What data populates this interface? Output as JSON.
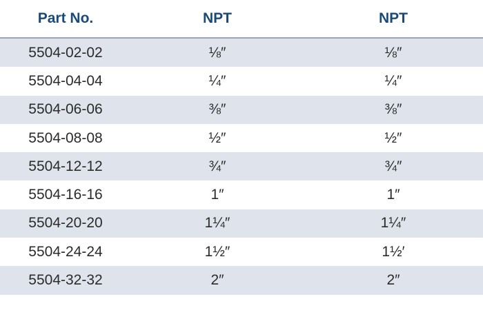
{
  "table": {
    "headers": [
      "Part No.",
      "NPT",
      "NPT"
    ],
    "rows": [
      [
        "5504-02-02",
        "⅛″",
        "⅛″"
      ],
      [
        "5504-04-04",
        "¼″",
        "¼″"
      ],
      [
        "5504-06-06",
        "⅜″",
        "⅜″"
      ],
      [
        "5504-08-08",
        "½″",
        "½″"
      ],
      [
        "5504-12-12",
        "¾″",
        "¾″"
      ],
      [
        "5504-16-16",
        "1″",
        "1″"
      ],
      [
        "5504-20-20",
        "1¼″",
        "1¼″"
      ],
      [
        "5504-24-24",
        "1½″",
        "1½′"
      ],
      [
        "5504-32-32",
        "2″",
        "2″"
      ]
    ]
  },
  "colors": {
    "header_text": "#1a4a7a",
    "row_shade": "#dfe3ec",
    "body_text": "#2b2b2b"
  }
}
